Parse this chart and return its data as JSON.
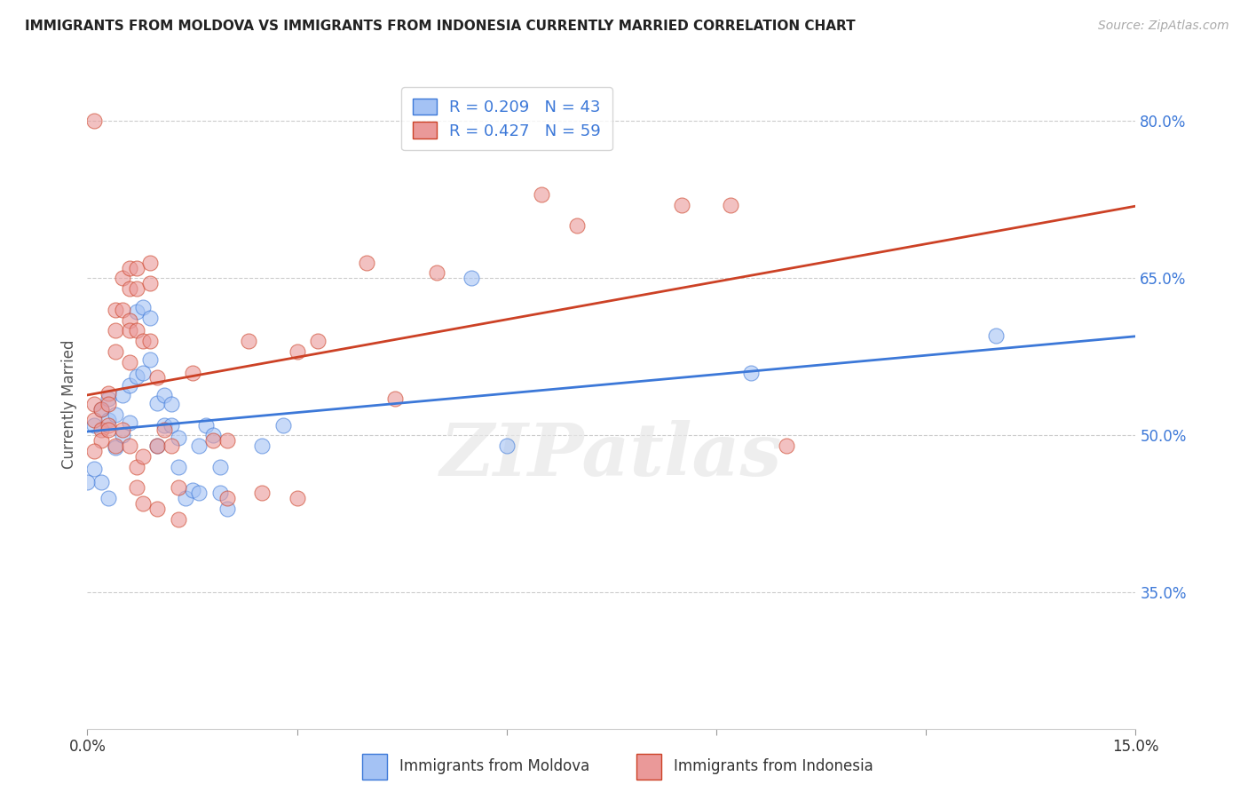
{
  "title": "IMMIGRANTS FROM MOLDOVA VS IMMIGRANTS FROM INDONESIA CURRENTLY MARRIED CORRELATION CHART",
  "source": "Source: ZipAtlas.com",
  "ylabel": "Currently Married",
  "right_yticks": [
    80.0,
    65.0,
    50.0,
    35.0
  ],
  "xmin": 0.0,
  "xmax": 0.15,
  "ymin": 0.22,
  "ymax": 0.84,
  "watermark_text": "ZIPatlas",
  "moldova_color": "#a4c2f4",
  "indonesia_color": "#ea9999",
  "moldova_line_color": "#3c78d8",
  "indonesia_line_color": "#cc4125",
  "moldova_R": 0.209,
  "moldova_N": 43,
  "indonesia_R": 0.427,
  "indonesia_N": 59,
  "moldova_scatter": [
    [
      0.001,
      0.51
    ],
    [
      0.002,
      0.525
    ],
    [
      0.003,
      0.515
    ],
    [
      0.003,
      0.535
    ],
    [
      0.004,
      0.52
    ],
    [
      0.004,
      0.488
    ],
    [
      0.005,
      0.538
    ],
    [
      0.005,
      0.5
    ],
    [
      0.006,
      0.548
    ],
    [
      0.006,
      0.512
    ],
    [
      0.007,
      0.556
    ],
    [
      0.007,
      0.618
    ],
    [
      0.008,
      0.56
    ],
    [
      0.008,
      0.622
    ],
    [
      0.009,
      0.572
    ],
    [
      0.009,
      0.612
    ],
    [
      0.01,
      0.531
    ],
    [
      0.01,
      0.49
    ],
    [
      0.011,
      0.538
    ],
    [
      0.011,
      0.51
    ],
    [
      0.012,
      0.53
    ],
    [
      0.012,
      0.51
    ],
    [
      0.013,
      0.498
    ],
    [
      0.013,
      0.47
    ],
    [
      0.014,
      0.44
    ],
    [
      0.015,
      0.448
    ],
    [
      0.016,
      0.445
    ],
    [
      0.016,
      0.49
    ],
    [
      0.017,
      0.51
    ],
    [
      0.018,
      0.5
    ],
    [
      0.019,
      0.47
    ],
    [
      0.019,
      0.445
    ],
    [
      0.02,
      0.43
    ],
    [
      0.025,
      0.49
    ],
    [
      0.028,
      0.51
    ],
    [
      0.055,
      0.65
    ],
    [
      0.06,
      0.49
    ],
    [
      0.095,
      0.56
    ],
    [
      0.13,
      0.595
    ],
    [
      0.001,
      0.468
    ],
    [
      0.002,
      0.455
    ],
    [
      0.003,
      0.44
    ],
    [
      0.0,
      0.455
    ]
  ],
  "indonesia_scatter": [
    [
      0.001,
      0.515
    ],
    [
      0.001,
      0.53
    ],
    [
      0.002,
      0.525
    ],
    [
      0.002,
      0.505
    ],
    [
      0.002,
      0.495
    ],
    [
      0.003,
      0.51
    ],
    [
      0.003,
      0.505
    ],
    [
      0.003,
      0.54
    ],
    [
      0.003,
      0.53
    ],
    [
      0.004,
      0.6
    ],
    [
      0.004,
      0.58
    ],
    [
      0.004,
      0.62
    ],
    [
      0.004,
      0.49
    ],
    [
      0.005,
      0.62
    ],
    [
      0.005,
      0.65
    ],
    [
      0.005,
      0.505
    ],
    [
      0.006,
      0.66
    ],
    [
      0.006,
      0.64
    ],
    [
      0.006,
      0.61
    ],
    [
      0.006,
      0.57
    ],
    [
      0.006,
      0.6
    ],
    [
      0.006,
      0.49
    ],
    [
      0.007,
      0.66
    ],
    [
      0.007,
      0.64
    ],
    [
      0.007,
      0.6
    ],
    [
      0.007,
      0.47
    ],
    [
      0.007,
      0.45
    ],
    [
      0.008,
      0.59
    ],
    [
      0.008,
      0.48
    ],
    [
      0.008,
      0.435
    ],
    [
      0.009,
      0.665
    ],
    [
      0.009,
      0.645
    ],
    [
      0.009,
      0.59
    ],
    [
      0.01,
      0.555
    ],
    [
      0.01,
      0.49
    ],
    [
      0.01,
      0.43
    ],
    [
      0.011,
      0.505
    ],
    [
      0.012,
      0.49
    ],
    [
      0.013,
      0.45
    ],
    [
      0.013,
      0.42
    ],
    [
      0.015,
      0.56
    ],
    [
      0.018,
      0.495
    ],
    [
      0.02,
      0.495
    ],
    [
      0.02,
      0.44
    ],
    [
      0.023,
      0.59
    ],
    [
      0.025,
      0.445
    ],
    [
      0.03,
      0.58
    ],
    [
      0.03,
      0.44
    ],
    [
      0.033,
      0.59
    ],
    [
      0.04,
      0.665
    ],
    [
      0.044,
      0.535
    ],
    [
      0.05,
      0.655
    ],
    [
      0.065,
      0.73
    ],
    [
      0.07,
      0.7
    ],
    [
      0.085,
      0.72
    ],
    [
      0.092,
      0.72
    ],
    [
      0.1,
      0.49
    ],
    [
      0.001,
      0.8
    ],
    [
      0.001,
      0.485
    ]
  ]
}
